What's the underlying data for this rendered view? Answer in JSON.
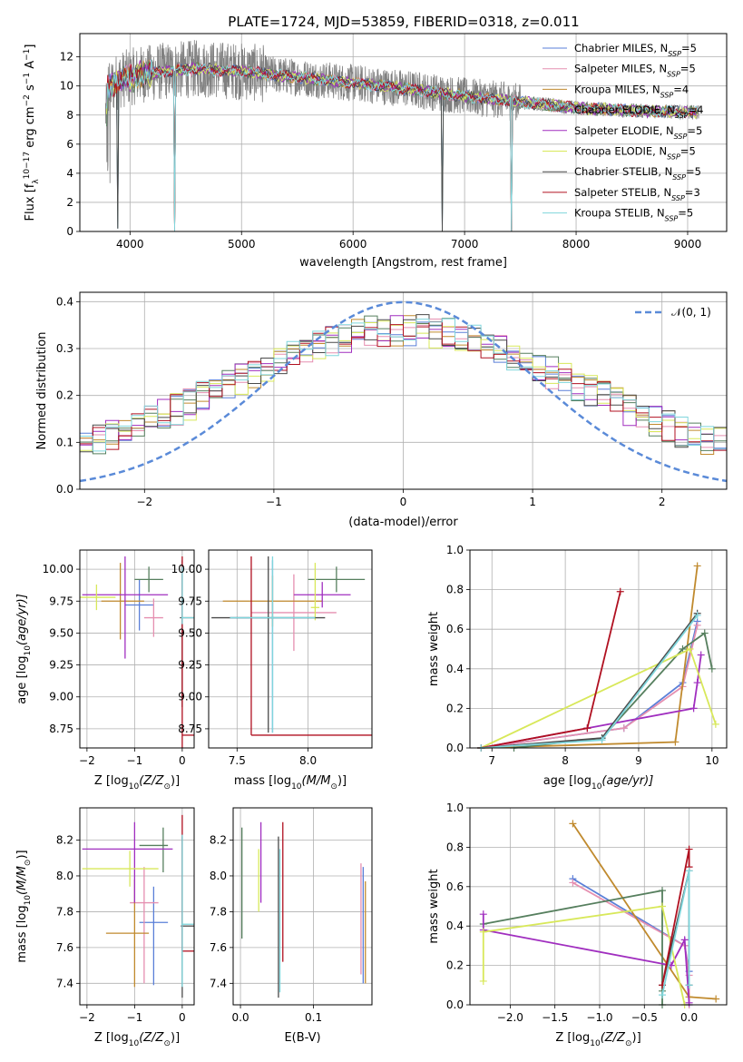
{
  "figure_title": "PLATE=1724, MJD=53859, FIBERID=0318, z=0.011",
  "colors": [
    "#5a7fd8",
    "#e58fb0",
    "#c08a2e",
    "#567f5e",
    "#a02ebf",
    "#d8e85a",
    "#4a4a4a",
    "#b01020",
    "#7fd6dc"
  ],
  "models": [
    {
      "name": "Chabrier MILES",
      "nssp": "5",
      "color": "#5a7fd8"
    },
    {
      "name": "Salpeter MILES",
      "nssp": "5",
      "color": "#e58fb0"
    },
    {
      "name": "Kroupa MILES",
      "nssp": "4",
      "color": "#c08a2e"
    },
    {
      "name": "Chabrier ELODIE",
      "nssp": "4",
      "color": "#567f5e"
    },
    {
      "name": "Salpeter ELODIE",
      "nssp": "5",
      "color": "#a02ebf"
    },
    {
      "name": "Kroupa ELODIE",
      "nssp": "5",
      "color": "#d8e85a"
    },
    {
      "name": "Chabrier STELIB",
      "nssp": "5",
      "color": "#4a4a4a"
    },
    {
      "name": "Salpeter STELIB",
      "nssp": "3",
      "color": "#b01020"
    },
    {
      "name": "Kroupa STELIB",
      "nssp": "5",
      "color": "#7fd6dc"
    }
  ],
  "chart_data": [
    {
      "id": "spectrum",
      "type": "line",
      "xlabel": "wavelength [Angstrom, rest frame]",
      "ylabel": "Flux [f",
      "ylabel_parts": [
        "Flux [f",
        "λ",
        "10",
        "−17",
        " erg cm",
        "−2",
        " s",
        "−1",
        " A",
        "−1",
        "]"
      ],
      "xlim": [
        3550,
        9350
      ],
      "ylim": [
        0,
        13.6
      ],
      "xticks": [
        4000,
        5000,
        6000,
        7000,
        8000,
        9000
      ],
      "yticks": [
        0,
        2,
        4,
        6,
        8,
        10,
        12
      ],
      "data_color": "#808080",
      "data_x_range": [
        3780,
        9100
      ],
      "continuum": [
        [
          3800,
          9.8
        ],
        [
          3900,
          10.4
        ],
        [
          4000,
          10.6
        ],
        [
          4100,
          10.8
        ],
        [
          4300,
          11.0
        ],
        [
          4600,
          11.2
        ],
        [
          5000,
          11.0
        ],
        [
          5500,
          10.6
        ],
        [
          6000,
          10.2
        ],
        [
          6500,
          9.8
        ],
        [
          7000,
          9.3
        ],
        [
          7500,
          8.9
        ],
        [
          8000,
          8.5
        ],
        [
          8500,
          8.3
        ],
        [
          9000,
          8.2
        ],
        [
          9100,
          8.2
        ]
      ],
      "model_dips": [
        [
          3890,
          0.2
        ],
        [
          4400,
          0
        ],
        [
          6800,
          0
        ],
        [
          7420,
          0
        ]
      ],
      "legend_suffix_base": "N",
      "legend_suffix_sub": "SSP"
    },
    {
      "id": "residual-histogram",
      "type": "line",
      "xlabel": "(data-model)/error",
      "ylabel": "Normed distribution",
      "xlim": [
        -2.5,
        2.5
      ],
      "ylim": [
        0,
        0.42
      ],
      "xticks": [
        -2,
        -1,
        0,
        1,
        2
      ],
      "yticks": [
        0.0,
        0.1,
        0.2,
        0.3,
        0.4
      ],
      "gaussian": {
        "mu": 0,
        "sigma": 1,
        "legend": "𝒩(0, 1)",
        "color": "#5a8ad8"
      },
      "bins": 50,
      "hist_profile_peak": 0.3,
      "hist_profile_sigma": 1.35
    },
    {
      "id": "age-vs-z",
      "type": "scatter",
      "xlabel": "Z [log",
      "xlabel_parts": [
        "Z [log",
        "10",
        "(Z/Z",
        "⊙",
        ")]"
      ],
      "ylabel_parts": [
        "age  [log",
        "10",
        "(age/yr)]"
      ],
      "xlim": [
        -2.15,
        0.25
      ],
      "ylim": [
        8.6,
        10.15
      ],
      "xticks": [
        -2,
        -1,
        0
      ],
      "yticks": [
        8.75,
        9.0,
        9.25,
        9.5,
        9.75,
        10.0
      ],
      "points": [
        {
          "model": 0,
          "x": -0.9,
          "y": 9.72,
          "xerr": [
            0.3,
            0.3
          ],
          "yerr": [
            0.2,
            0.2
          ]
        },
        {
          "model": 1,
          "x": -0.6,
          "y": 9.62,
          "xerr": [
            0.2,
            0.2
          ],
          "yerr": [
            0.15,
            0.15
          ]
        },
        {
          "model": 2,
          "x": -1.3,
          "y": 9.75,
          "xerr": [
            0.4,
            0.5
          ],
          "yerr": [
            0.3,
            0.3
          ]
        },
        {
          "model": 3,
          "x": -0.7,
          "y": 9.92,
          "xerr": [
            0.3,
            0.3
          ],
          "yerr": [
            0.1,
            0.1
          ]
        },
        {
          "model": 4,
          "x": -1.2,
          "y": 9.8,
          "xerr": [
            0.9,
            0.9
          ],
          "yerr": [
            0.5,
            0.3
          ]
        },
        {
          "model": 5,
          "x": -1.8,
          "y": 9.78,
          "xerr": [
            0.35,
            0.4
          ],
          "yerr": [
            0.1,
            0.1
          ]
        },
        {
          "model": 6,
          "x": 0.0,
          "y": 9.62,
          "xerr": [
            0.05,
            0.25
          ],
          "yerr": [
            0.7,
            0.45
          ]
        },
        {
          "model": 7,
          "x": 0.0,
          "y": 8.7,
          "xerr": [
            0.0,
            0.25
          ],
          "yerr": [
            0.1,
            1.4
          ]
        },
        {
          "model": 8,
          "x": 0.0,
          "y": 9.62,
          "xerr": [
            0.02,
            0.25
          ],
          "yerr": [
            0.05,
            0.4
          ]
        }
      ]
    },
    {
      "id": "age-vs-mass",
      "type": "scatter",
      "xlabel_parts": [
        "mass [log",
        "10",
        "(M/M",
        "⊙",
        ")]"
      ],
      "xlim": [
        7.3,
        8.45
      ],
      "ylim": [
        8.6,
        10.15
      ],
      "xticks": [
        7.5,
        8.0
      ],
      "yticks": [
        8.75,
        9.0,
        9.25,
        9.5,
        9.75,
        10.0
      ],
      "points": [
        {
          "model": 0,
          "x": 7.75,
          "y": 9.62,
          "xerr": [
            0.3,
            0.3
          ],
          "yerr": [
            0.9,
            0.45
          ]
        },
        {
          "model": 1,
          "x": 7.9,
          "y": 9.66,
          "xerr": [
            0.3,
            0.3
          ],
          "yerr": [
            0.3,
            0.3
          ]
        },
        {
          "model": 2,
          "x": 7.75,
          "y": 9.75,
          "xerr": [
            0.35,
            0.35
          ],
          "yerr": [
            0.2,
            0.2
          ]
        },
        {
          "model": 3,
          "x": 8.2,
          "y": 9.92,
          "xerr": [
            0.2,
            0.2
          ],
          "yerr": [
            0.1,
            0.1
          ]
        },
        {
          "model": 4,
          "x": 8.1,
          "y": 9.8,
          "xerr": [
            0.2,
            0.2
          ],
          "yerr": [
            0.1,
            0.1
          ]
        },
        {
          "model": 5,
          "x": 8.05,
          "y": 9.7,
          "xerr": [
            0.03,
            0.03
          ],
          "yerr": [
            0.1,
            0.35
          ]
        },
        {
          "model": 6,
          "x": 7.72,
          "y": 9.62,
          "xerr": [
            0.4,
            0.4
          ],
          "yerr": [
            0.9,
            0.48
          ]
        },
        {
          "model": 7,
          "x": 7.6,
          "y": 8.7,
          "xerr": [
            0.0,
            0.85
          ],
          "yerr": [
            0.0,
            1.4
          ]
        },
        {
          "model": 8,
          "x": 7.75,
          "y": 9.62,
          "xerr": [
            0.3,
            0.3
          ],
          "yerr": [
            0.9,
            0.48
          ]
        }
      ]
    },
    {
      "id": "mass-weight-vs-age",
      "type": "line",
      "xlabel_parts": [
        "age  [log",
        "10",
        "(age/yr)]"
      ],
      "ylabel": "mass weight",
      "xlim": [
        6.7,
        10.2
      ],
      "ylim": [
        0,
        1.0
      ],
      "xticks": [
        7,
        8,
        9,
        10
      ],
      "yticks": [
        0.0,
        0.2,
        0.4,
        0.6,
        0.8,
        1.0
      ],
      "series": [
        {
          "model": 0,
          "x": [
            6.85,
            8.8,
            9.6,
            9.8
          ],
          "y": [
            0.0,
            0.1,
            0.33,
            0.64
          ]
        },
        {
          "model": 1,
          "x": [
            6.85,
            8.8,
            9.6,
            9.8
          ],
          "y": [
            0.0,
            0.1,
            0.31,
            0.62
          ]
        },
        {
          "model": 2,
          "x": [
            6.85,
            9.5,
            9.8
          ],
          "y": [
            0.0,
            0.03,
            0.92
          ]
        },
        {
          "model": 3,
          "x": [
            7.3,
            8.5,
            9.6,
            9.9,
            10.0
          ],
          "y": [
            0.0,
            0.05,
            0.5,
            0.58,
            0.4
          ]
        },
        {
          "model": 4,
          "x": [
            6.85,
            8.3,
            9.75,
            9.8,
            9.85
          ],
          "y": [
            0.0,
            0.1,
            0.2,
            0.33,
            0.47
          ]
        },
        {
          "model": 5,
          "x": [
            6.85,
            9.7,
            10.05
          ],
          "y": [
            0.0,
            0.5,
            0.12
          ]
        },
        {
          "model": 6,
          "x": [
            6.85,
            8.5,
            9.8
          ],
          "y": [
            0.0,
            0.05,
            0.68
          ]
        },
        {
          "model": 7,
          "x": [
            6.85,
            8.3,
            8.75
          ],
          "y": [
            0.0,
            0.1,
            0.79
          ]
        },
        {
          "model": 8,
          "x": [
            6.85,
            8.5,
            9.8
          ],
          "y": [
            0.0,
            0.04,
            0.67
          ]
        }
      ]
    },
    {
      "id": "mass-vs-z",
      "type": "scatter",
      "xlabel_parts": [
        "Z [log",
        "10",
        "(Z/Z",
        "⊙",
        ")]"
      ],
      "ylabel_parts": [
        "mass [log",
        "10",
        "(M/M",
        "⊙",
        ")]"
      ],
      "xlim": [
        -2.15,
        0.25
      ],
      "ylim": [
        7.28,
        8.38
      ],
      "xticks": [
        -2,
        -1,
        0
      ],
      "yticks": [
        7.4,
        7.6,
        7.8,
        8.0,
        8.2
      ],
      "points": [
        {
          "model": 0,
          "x": -0.6,
          "y": 7.74,
          "xerr": [
            0.3,
            0.3
          ],
          "yerr": [
            0.35,
            0.2
          ]
        },
        {
          "model": 1,
          "x": -0.8,
          "y": 7.85,
          "xerr": [
            0.3,
            0.3
          ],
          "yerr": [
            0.45,
            0.2
          ]
        },
        {
          "model": 2,
          "x": -1.0,
          "y": 7.68,
          "xerr": [
            0.6,
            0.3
          ],
          "yerr": [
            0.3,
            0.3
          ]
        },
        {
          "model": 3,
          "x": -0.4,
          "y": 8.17,
          "xerr": [
            0.5,
            0.1
          ],
          "yerr": [
            0.15,
            0.1
          ]
        },
        {
          "model": 4,
          "x": -1.0,
          "y": 8.15,
          "xerr": [
            1.1,
            0.8
          ],
          "yerr": [
            0.3,
            0.15
          ]
        },
        {
          "model": 5,
          "x": -1.1,
          "y": 8.04,
          "xerr": [
            1.0,
            0.6
          ],
          "yerr": [
            0.1,
            0.1
          ]
        },
        {
          "model": 6,
          "x": 0.0,
          "y": 7.72,
          "xerr": [
            0.03,
            0.25
          ],
          "yerr": [
            0.4,
            0.5
          ]
        },
        {
          "model": 7,
          "x": 0.0,
          "y": 7.58,
          "xerr": [
            0.0,
            0.25
          ],
          "yerr": [
            0.0,
            0.76
          ]
        },
        {
          "model": 8,
          "x": 0.0,
          "y": 7.73,
          "xerr": [
            0.02,
            0.25
          ],
          "yerr": [
            0.35,
            0.5
          ]
        }
      ]
    },
    {
      "id": "mass-vs-ebv",
      "type": "scatter",
      "xlabel": "E(B-V)",
      "xlim": [
        -0.01,
        0.18
      ],
      "ylim": [
        7.28,
        8.38
      ],
      "xticks": [
        0.0,
        0.1
      ],
      "yticks": [
        7.4,
        7.6,
        7.8,
        8.0,
        8.2
      ],
      "points": [
        {
          "model": 0,
          "x": 0.168,
          "y": 7.7,
          "xerr": [
            0,
            0
          ],
          "yerr": [
            0.3,
            0.35
          ]
        },
        {
          "model": 1,
          "x": 0.165,
          "y": 7.75,
          "xerr": [
            0,
            0
          ],
          "yerr": [
            0.3,
            0.32
          ]
        },
        {
          "model": 2,
          "x": 0.171,
          "y": 7.7,
          "xerr": [
            0,
            0
          ],
          "yerr": [
            0.3,
            0.27
          ]
        },
        {
          "model": 3,
          "x": 0.002,
          "y": 7.95,
          "xerr": [
            0,
            0
          ],
          "yerr": [
            0.3,
            0.32
          ]
        },
        {
          "model": 4,
          "x": 0.028,
          "y": 8.1,
          "xerr": [
            0,
            0
          ],
          "yerr": [
            0.25,
            0.2
          ]
        },
        {
          "model": 5,
          "x": 0.025,
          "y": 8.0,
          "xerr": [
            0,
            0
          ],
          "yerr": [
            0.2,
            0.15
          ]
        },
        {
          "model": 6,
          "x": 0.052,
          "y": 7.8,
          "xerr": [
            0,
            0
          ],
          "yerr": [
            0.48,
            0.42
          ]
        },
        {
          "model": 7,
          "x": 0.058,
          "y": 7.9,
          "xerr": [
            0,
            0
          ],
          "yerr": [
            0.38,
            0.4
          ]
        },
        {
          "model": 8,
          "x": 0.054,
          "y": 7.7,
          "xerr": [
            0,
            0
          ],
          "yerr": [
            0.35,
            0.45
          ]
        }
      ]
    },
    {
      "id": "mass-weight-vs-z",
      "type": "line",
      "xlabel_parts": [
        "Z [log",
        "10",
        "(Z/Z",
        "⊙",
        ")]"
      ],
      "ylabel": "mass weight",
      "xlim": [
        -2.45,
        0.42
      ],
      "ylim": [
        0,
        1.0
      ],
      "xticks": [
        -2.0,
        -1.5,
        -1.0,
        -0.5,
        0.0
      ],
      "yticks": [
        0.0,
        0.2,
        0.4,
        0.6,
        0.8,
        1.0
      ],
      "series": [
        {
          "model": 0,
          "x": [
            -1.3,
            -0.05,
            0.0,
            0.0
          ],
          "y": [
            0.64,
            0.3,
            0.17,
            0.0
          ]
        },
        {
          "model": 1,
          "x": [
            -1.3,
            -0.05,
            0.0,
            0.0
          ],
          "y": [
            0.62,
            0.3,
            0.15,
            0.0
          ]
        },
        {
          "model": 2,
          "x": [
            -1.3,
            0.0,
            0.3
          ],
          "y": [
            0.92,
            0.04,
            0.03
          ]
        },
        {
          "model": 3,
          "x": [
            -2.3,
            -0.3,
            -0.3,
            -0.3
          ],
          "y": [
            0.41,
            0.58,
            0.07,
            0.0
          ]
        },
        {
          "model": 4,
          "x": [
            -2.3,
            -2.3,
            -0.2,
            -0.05,
            0.0
          ],
          "y": [
            0.46,
            0.38,
            0.2,
            0.33,
            0.01
          ]
        },
        {
          "model": 5,
          "x": [
            -2.3,
            -2.3,
            -0.3,
            -0.05
          ],
          "y": [
            0.12,
            0.37,
            0.5,
            0.0
          ]
        },
        {
          "model": 6,
          "x": [
            -0.3,
            0.0,
            0.0
          ],
          "y": [
            0.1,
            0.68,
            0.1
          ]
        },
        {
          "model": 7,
          "x": [
            -0.3,
            0.0,
            0.0
          ],
          "y": [
            0.1,
            0.79,
            0.7
          ]
        },
        {
          "model": 8,
          "x": [
            -0.3,
            0.0,
            0.0
          ],
          "y": [
            0.05,
            0.68,
            0.1
          ]
        }
      ]
    }
  ]
}
